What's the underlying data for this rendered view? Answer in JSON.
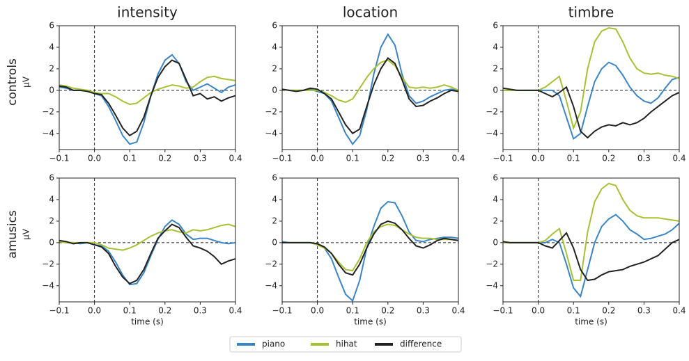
{
  "chart_data": [
    {
      "type": "line",
      "title": "intensity",
      "row_label": "controls",
      "ylabel": "µV",
      "x": [
        -0.1,
        -0.08,
        -0.06,
        -0.04,
        -0.02,
        0,
        0.02,
        0.04,
        0.06,
        0.08,
        0.1,
        0.12,
        0.14,
        0.16,
        0.18,
        0.2,
        0.22,
        0.24,
        0.26,
        0.28,
        0.3,
        0.32,
        0.34,
        0.36,
        0.38,
        0.4
      ],
      "series": [
        {
          "name": "piano",
          "color": "#3a84c8",
          "values": [
            0.3,
            0.2,
            0,
            0,
            0,
            -0.3,
            -0.5,
            -1.5,
            -2.8,
            -4.2,
            -5,
            -4.8,
            -3,
            -0.5,
            1.5,
            2.8,
            3.3,
            2.5,
            0.8,
            0,
            0.3,
            0.6,
            0.2,
            -0.2,
            0.3,
            0.5
          ]
        },
        {
          "name": "hihat",
          "color": "#a6c132",
          "values": [
            0.5,
            0.4,
            0.2,
            0.1,
            0,
            -0.2,
            -0.3,
            -0.3,
            -0.6,
            -1,
            -1.3,
            -1.2,
            -0.7,
            -0.2,
            0.1,
            0.3,
            0.5,
            0.4,
            0.2,
            0.3,
            0.8,
            1.2,
            1.3,
            1.1,
            1.0,
            0.9
          ]
        },
        {
          "name": "difference",
          "color": "#222222",
          "values": [
            0.4,
            0.3,
            0,
            0,
            -0.1,
            -0.3,
            -0.4,
            -1.2,
            -2.3,
            -3.5,
            -4.2,
            -3.8,
            -2.5,
            -0.5,
            1.2,
            2.2,
            2.8,
            2.5,
            1,
            -0.5,
            -0.3,
            -0.8,
            -0.6,
            -1,
            -0.7,
            -0.5
          ]
        }
      ],
      "xlim": [
        -0.1,
        0.4
      ],
      "ylim": [
        -5.5,
        6
      ],
      "xticks": [
        {
          "value": -0.1,
          "label": "−0.1"
        },
        {
          "value": 0,
          "label": "0.0"
        },
        0.1,
        0.2,
        0.3,
        0.4
      ],
      "yticks": [
        {
          "value": -4,
          "label": "−4"
        },
        {
          "value": -2,
          "label": "−2"
        },
        0,
        2,
        4,
        6
      ],
      "hline": 0,
      "vline": 0
    },
    {
      "type": "line",
      "title": "location",
      "x": [
        -0.1,
        -0.08,
        -0.06,
        -0.04,
        -0.02,
        0,
        0.02,
        0.04,
        0.06,
        0.08,
        0.1,
        0.12,
        0.14,
        0.16,
        0.18,
        0.2,
        0.22,
        0.24,
        0.26,
        0.28,
        0.3,
        0.32,
        0.34,
        0.36,
        0.38,
        0.4
      ],
      "series": [
        {
          "name": "piano",
          "color": "#3a84c8",
          "values": [
            0.1,
            0,
            0,
            0,
            0.1,
            -0.1,
            -0.3,
            -1,
            -2.5,
            -4,
            -5,
            -4.2,
            -1.8,
            1.5,
            4,
            5.2,
            4.2,
            1.5,
            -0.5,
            -1.2,
            -1,
            -0.6,
            -0.3,
            0,
            0.1,
            0
          ]
        },
        {
          "name": "hihat",
          "color": "#a6c132",
          "values": [
            0.1,
            0,
            0,
            0,
            0,
            0,
            -0.2,
            -0.5,
            -0.9,
            -1.1,
            -0.8,
            0.2,
            1.2,
            2,
            2.6,
            2.8,
            2.3,
            1.2,
            0.3,
            0.2,
            0.3,
            0.2,
            0.3,
            0.5,
            0.3,
            0
          ]
        },
        {
          "name": "difference",
          "color": "#222222",
          "values": [
            0.1,
            0,
            -0.1,
            0,
            0.2,
            0.1,
            -0.3,
            -0.8,
            -2,
            -3.2,
            -4,
            -3.6,
            -1.5,
            0.5,
            2,
            3,
            2.5,
            1,
            -0.8,
            -1.5,
            -1.4,
            -1,
            -0.7,
            -0.3,
            0,
            -0.1
          ]
        }
      ],
      "xlim": [
        -0.1,
        0.4
      ],
      "ylim": [
        -5.5,
        6
      ],
      "xticks": [
        {
          "value": -0.1,
          "label": "−0.1"
        },
        {
          "value": 0,
          "label": "0.0"
        },
        0.1,
        0.2,
        0.3,
        0.4
      ],
      "yticks": [
        {
          "value": -4,
          "label": "−4"
        },
        {
          "value": -2,
          "label": "−2"
        },
        0,
        2,
        4,
        6
      ],
      "hline": 0,
      "vline": 0
    },
    {
      "type": "line",
      "title": "timbre",
      "x": [
        -0.1,
        -0.08,
        -0.06,
        -0.04,
        -0.02,
        0,
        0.02,
        0.04,
        0.06,
        0.08,
        0.1,
        0.12,
        0.14,
        0.16,
        0.18,
        0.2,
        0.22,
        0.24,
        0.26,
        0.28,
        0.3,
        0.32,
        0.34,
        0.36,
        0.38,
        0.4
      ],
      "series": [
        {
          "name": "piano",
          "color": "#3a84c8",
          "values": [
            0,
            0,
            0,
            0,
            0,
            0,
            0,
            0,
            -0.5,
            -2.5,
            -4.5,
            -4,
            -1.5,
            0.8,
            2,
            2.6,
            2.3,
            1.4,
            0.3,
            -0.5,
            -1,
            -1.2,
            -0.7,
            0.2,
            1,
            1.2
          ]
        },
        {
          "name": "hihat",
          "color": "#a6c132",
          "values": [
            0,
            0,
            0,
            0,
            0,
            0,
            0.3,
            0.8,
            1.3,
            -1,
            -3.5,
            -2,
            2,
            4.5,
            5.5,
            5.8,
            5.7,
            4.5,
            3,
            2,
            1.6,
            1.5,
            1.6,
            1.4,
            1.3,
            1.1
          ]
        },
        {
          "name": "difference",
          "color": "#222222",
          "values": [
            0.2,
            0.1,
            0,
            0,
            0,
            0,
            -0.3,
            -0.6,
            -0.2,
            0.3,
            -1.5,
            -3.8,
            -4.4,
            -3.8,
            -3.4,
            -3.2,
            -3.3,
            -3,
            -3.2,
            -3,
            -2.6,
            -2,
            -1.5,
            -1,
            -0.5,
            -0.2
          ]
        }
      ],
      "xlim": [
        -0.1,
        0.4
      ],
      "ylim": [
        -5.5,
        6
      ],
      "xticks": [
        {
          "value": -0.1,
          "label": "−0.1"
        },
        {
          "value": 0,
          "label": "0.0"
        },
        0.1,
        0.2,
        0.3,
        0.4
      ],
      "yticks": [
        {
          "value": -4,
          "label": "−4"
        },
        {
          "value": -2,
          "label": "−2"
        },
        0,
        2,
        4,
        6
      ],
      "hline": 0,
      "vline": 0
    },
    {
      "type": "line",
      "row_label": "amusics",
      "ylabel": "µV",
      "xlabel": "time (s)",
      "x": [
        -0.1,
        -0.08,
        -0.06,
        -0.04,
        -0.02,
        0,
        0.02,
        0.04,
        0.06,
        0.08,
        0.1,
        0.12,
        0.14,
        0.16,
        0.18,
        0.2,
        0.22,
        0.24,
        0.26,
        0.28,
        0.3,
        0.32,
        0.34,
        0.36,
        0.38,
        0.4
      ],
      "series": [
        {
          "name": "piano",
          "color": "#3a84c8",
          "values": [
            0.1,
            0,
            0,
            -0.1,
            0,
            -0.2,
            -0.3,
            -0.8,
            -1.8,
            -3,
            -3.9,
            -3.8,
            -2.8,
            -1.2,
            0.3,
            1.5,
            2.1,
            1.7,
            0.8,
            0.3,
            0.4,
            0.4,
            0.2,
            0,
            -0.1,
            0
          ]
        },
        {
          "name": "hihat",
          "color": "#a6c132",
          "values": [
            0.1,
            0,
            0,
            0,
            0,
            0,
            -0.2,
            -0.5,
            -0.6,
            -0.7,
            -0.5,
            -0.2,
            0.2,
            0.6,
            0.9,
            1.1,
            1.2,
            1,
            0.9,
            1.2,
            1.1,
            1.2,
            1.4,
            1.6,
            1.7,
            1.5
          ]
        },
        {
          "name": "difference",
          "color": "#222222",
          "values": [
            0.2,
            0.1,
            -0.1,
            0,
            0,
            -0.2,
            -0.4,
            -1,
            -2.2,
            -3.2,
            -3.8,
            -3.5,
            -2.5,
            -1,
            0.4,
            1.1,
            1.7,
            1.4,
            0.5,
            -0.3,
            -0.5,
            -0.8,
            -1.3,
            -2,
            -1.7,
            -1.5
          ]
        }
      ],
      "xlim": [
        -0.1,
        0.4
      ],
      "ylim": [
        -5.5,
        6
      ],
      "xticks": [
        {
          "value": -0.1,
          "label": "−0.1"
        },
        {
          "value": 0,
          "label": "0.0"
        },
        0.1,
        0.2,
        0.3,
        0.4
      ],
      "yticks": [
        {
          "value": -4,
          "label": "−4"
        },
        {
          "value": -2,
          "label": "−2"
        },
        0,
        2,
        4,
        6
      ],
      "hline": 0,
      "vline": 0
    },
    {
      "type": "line",
      "xlabel": "time (s)",
      "x": [
        -0.1,
        -0.08,
        -0.06,
        -0.04,
        -0.02,
        0,
        0.02,
        0.04,
        0.06,
        0.08,
        0.1,
        0.12,
        0.14,
        0.16,
        0.18,
        0.2,
        0.22,
        0.24,
        0.26,
        0.28,
        0.3,
        0.32,
        0.34,
        0.36,
        0.38,
        0.4
      ],
      "series": [
        {
          "name": "piano",
          "color": "#3a84c8",
          "values": [
            0.1,
            0,
            0,
            0,
            0,
            -0.2,
            -0.5,
            -1.5,
            -3.2,
            -4.8,
            -5.4,
            -3.5,
            -0.5,
            1.5,
            3.2,
            3.8,
            3.7,
            2.5,
            1,
            0.2,
            0.1,
            0.3,
            0.4,
            0.5,
            0.5,
            0.4
          ]
        },
        {
          "name": "hihat",
          "color": "#a6c132",
          "values": [
            0,
            0,
            0,
            0,
            0,
            -0.2,
            -0.5,
            -1,
            -1.8,
            -2.5,
            -2.6,
            -1.5,
            0,
            1,
            1.5,
            1.7,
            1.6,
            1.2,
            0.8,
            0.5,
            0.4,
            0.4,
            0.3,
            0.3,
            0.3,
            0.2
          ]
        },
        {
          "name": "difference",
          "color": "#222222",
          "values": [
            0,
            0,
            0,
            0,
            0,
            -0.1,
            -0.4,
            -1,
            -2,
            -2.8,
            -3,
            -2,
            -0.5,
            0.8,
            1.7,
            2,
            1.8,
            1.2,
            0.4,
            -0.3,
            -0.5,
            -0.2,
            0.2,
            0.4,
            0.3,
            0.2
          ]
        }
      ],
      "xlim": [
        -0.1,
        0.4
      ],
      "ylim": [
        -5.5,
        6
      ],
      "xticks": [
        {
          "value": -0.1,
          "label": "−0.1"
        },
        {
          "value": 0,
          "label": "0.0"
        },
        0.1,
        0.2,
        0.3,
        0.4
      ],
      "yticks": [
        {
          "value": -4,
          "label": "−4"
        },
        {
          "value": -2,
          "label": "−2"
        },
        0,
        2,
        4,
        6
      ],
      "hline": 0,
      "vline": 0
    },
    {
      "type": "line",
      "xlabel": "time (s)",
      "x": [
        -0.1,
        -0.08,
        -0.06,
        -0.04,
        -0.02,
        0,
        0.02,
        0.04,
        0.06,
        0.08,
        0.1,
        0.12,
        0.14,
        0.16,
        0.18,
        0.2,
        0.22,
        0.24,
        0.26,
        0.28,
        0.3,
        0.32,
        0.34,
        0.36,
        0.38,
        0.4
      ],
      "series": [
        {
          "name": "piano",
          "color": "#3a84c8",
          "values": [
            0,
            0,
            0,
            0,
            0,
            0,
            0,
            0.3,
            0,
            -2,
            -4.2,
            -5,
            -2.5,
            0,
            1.5,
            2.2,
            2.6,
            2,
            1.2,
            0.8,
            0.3,
            0.4,
            0.6,
            0.8,
            1.2,
            1.8
          ]
        },
        {
          "name": "hihat",
          "color": "#a6c132",
          "values": [
            0,
            0,
            0,
            0,
            0,
            0,
            0.2,
            0.8,
            1.3,
            -1,
            -3.5,
            -3.5,
            1,
            3.8,
            5,
            5.5,
            5.3,
            4,
            3,
            2.5,
            2.3,
            2.3,
            2.3,
            2.2,
            2.1,
            2
          ]
        },
        {
          "name": "difference",
          "color": "#222222",
          "values": [
            0.1,
            0,
            0,
            0,
            0,
            0,
            -0.3,
            -0.5,
            0.2,
            0.9,
            -0.5,
            -2.5,
            -3.5,
            -3.4,
            -3,
            -2.7,
            -2.6,
            -2.5,
            -2.2,
            -2,
            -1.8,
            -1.5,
            -1.2,
            -0.6,
            0,
            0.3
          ]
        }
      ],
      "xlim": [
        -0.1,
        0.4
      ],
      "ylim": [
        -5.5,
        6
      ],
      "xticks": [
        {
          "value": -0.1,
          "label": "−0.1"
        },
        {
          "value": 0,
          "label": "0.0"
        },
        0.1,
        0.2,
        0.3,
        0.4
      ],
      "yticks": [
        {
          "value": -4,
          "label": "−4"
        },
        {
          "value": -2,
          "label": "−2"
        },
        0,
        2,
        4,
        6
      ],
      "hline": 0,
      "vline": 0
    }
  ]
}
